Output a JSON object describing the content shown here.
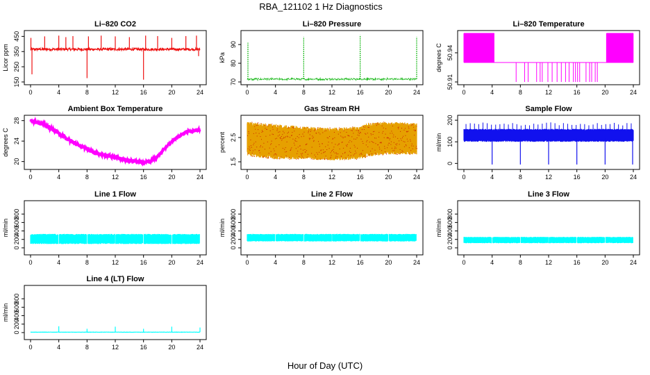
{
  "figure": {
    "title": "RBA_121102  1 Hz Diagnostics",
    "xlabel": "Hour of Day (UTC)"
  },
  "chart_data": [
    {
      "type": "line",
      "title": "Li–820 CO2",
      "ylabel": "Licor ppm",
      "color": "#ee1111",
      "xlim": [
        0,
        24
      ],
      "xticks": [
        0,
        4,
        8,
        12,
        16,
        20,
        24
      ],
      "ylim": [
        150,
        470
      ],
      "yticks": [
        150,
        250,
        350,
        450
      ],
      "series": [
        {
          "name": "CO2",
          "baseline": 365,
          "noise": 8,
          "spikes_up": [
            [
              0.05,
              440
            ],
            [
              2,
              450
            ],
            [
              4,
              455
            ],
            [
              5,
              445
            ],
            [
              6,
              452
            ],
            [
              8.2,
              450
            ],
            [
              10,
              455
            ],
            [
              12,
              450
            ],
            [
              14,
              445
            ],
            [
              16.3,
              455
            ],
            [
              18,
              452
            ],
            [
              20,
              440
            ],
            [
              22,
              452
            ],
            [
              23.5,
              455
            ]
          ],
          "spikes_down": [
            [
              0.2,
              200
            ],
            [
              8,
              175
            ],
            [
              16,
              165
            ],
            [
              23.8,
              320
            ]
          ]
        }
      ]
    },
    {
      "type": "line",
      "title": "Li–820 Pressure",
      "ylabel": "kPa",
      "color": "#22bb22",
      "xlim": [
        0,
        24
      ],
      "xticks": [
        0,
        4,
        8,
        12,
        16,
        20,
        24
      ],
      "ylim": [
        70,
        96
      ],
      "yticks": [
        70,
        80,
        90
      ],
      "series": [
        {
          "name": "Pressure",
          "baseline": 71.5,
          "noise": 0.4,
          "dashed": true,
          "spikes_up": [
            [
              0.1,
              91
            ],
            [
              8,
              94
            ],
            [
              16,
              95
            ],
            [
              24,
              94
            ]
          ]
        }
      ]
    },
    {
      "type": "step",
      "title": "Li–820 Temperature",
      "ylabel": "degrees C",
      "color": "#ff00ff",
      "xlim": [
        0,
        24
      ],
      "xticks": [
        0,
        4,
        8,
        12,
        16,
        20,
        24
      ],
      "ylim": [
        50.91,
        50.96
      ],
      "yticks": [
        50.91,
        50.94
      ],
      "ytick_labels": [
        "50.91",
        "50.94"
      ],
      "series": [
        {
          "name": "Temperature",
          "low": 50.91,
          "mid": 50.93,
          "high": 50.96,
          "dense_ranges": [
            [
              0,
              4.3
            ],
            [
              20.2,
              24
            ]
          ],
          "drops": [
            7.4,
            8.6,
            9.1,
            10.3,
            10.8,
            11.1,
            11.9,
            12.5,
            13.2,
            13.8,
            14.4,
            14.9,
            15.5,
            15.8,
            16.1,
            16.4,
            17.3,
            17.8,
            18.1,
            18.6,
            18.9
          ]
        }
      ]
    },
    {
      "type": "line",
      "title": "Ambient Box Temperature",
      "ylabel": "degrees C",
      "color": "#ff00ff",
      "xlim": [
        0,
        24
      ],
      "xticks": [
        0,
        4,
        8,
        12,
        16,
        20,
        24
      ],
      "ylim": [
        19,
        28.5
      ],
      "yticks": [
        20,
        24,
        28
      ],
      "series": [
        {
          "name": "Ambient",
          "x": [
            0,
            2,
            4,
            6,
            8,
            10,
            12,
            14,
            16,
            17,
            18,
            19,
            20,
            22,
            24
          ],
          "y": [
            28,
            27.2,
            25.5,
            23.8,
            22.4,
            21.4,
            20.8,
            20.2,
            19.8,
            20.0,
            21.0,
            22.5,
            24.0,
            25.8,
            26.2
          ],
          "noise": 0.35
        }
      ]
    },
    {
      "type": "band",
      "title": "Gas Stream RH",
      "ylabel": "percent",
      "color": "#e6a000",
      "xlim": [
        0,
        24
      ],
      "xticks": [
        0,
        4,
        8,
        12,
        16,
        20,
        24
      ],
      "ylim": [
        1.3,
        3.3
      ],
      "yticks": [
        1.5,
        2.5
      ],
      "series": [
        {
          "name": "RH",
          "x": [
            0,
            2,
            4,
            8,
            12,
            16,
            17,
            20,
            24
          ],
          "lo": [
            1.75,
            1.65,
            1.6,
            1.6,
            1.55,
            1.6,
            1.7,
            1.8,
            1.8
          ],
          "hi": [
            3.15,
            3.1,
            3.05,
            2.95,
            2.9,
            2.95,
            3.1,
            3.15,
            3.1
          ]
        }
      ]
    },
    {
      "type": "band",
      "title": "Sample Flow",
      "ylabel": "ml/min",
      "color": "#1111ee",
      "xlim": [
        0,
        24
      ],
      "xticks": [
        0,
        4,
        8,
        12,
        16,
        20,
        24
      ],
      "ylim": [
        -15,
        210
      ],
      "yticks": [
        0,
        100,
        200
      ],
      "series": [
        {
          "name": "Sample",
          "x": [
            0,
            24
          ],
          "lo": [
            100,
            100
          ],
          "hi": [
            160,
            160
          ],
          "spikes_up": 190,
          "drops": [
            4,
            8,
            12,
            16,
            20,
            23.9
          ],
          "drop_value": -5
        }
      ]
    },
    {
      "type": "band",
      "title": "Line 1 Flow",
      "ylabel": "ml/min",
      "color": "#00ffff",
      "xlim": [
        0,
        24
      ],
      "xticks": [
        0,
        4,
        8,
        12,
        16,
        20,
        24
      ],
      "ylim": [
        -100,
        1050
      ],
      "yticks": [
        0,
        200,
        400,
        600,
        800
      ],
      "series": [
        {
          "name": "Line 1",
          "x": [
            0,
            24
          ],
          "lo": [
            90,
            90
          ],
          "hi": [
            330,
            330
          ],
          "gaps": [
            4,
            8,
            12,
            16,
            20,
            24
          ]
        }
      ]
    },
    {
      "type": "band",
      "title": "Line 2 Flow",
      "ylabel": "ml/min",
      "color": "#00ffff",
      "xlim": [
        0,
        24
      ],
      "xticks": [
        0,
        4,
        8,
        12,
        16,
        20,
        24
      ],
      "ylim": [
        -100,
        1050
      ],
      "yticks": [
        0,
        200,
        400,
        600,
        800
      ],
      "series": [
        {
          "name": "Line 2",
          "x": [
            0,
            24
          ],
          "lo": [
            150,
            150
          ],
          "hi": [
            330,
            330
          ],
          "gaps": [
            4,
            8,
            12,
            16,
            20,
            24
          ]
        }
      ]
    },
    {
      "type": "band",
      "title": "Line 3 Flow",
      "ylabel": "ml/min",
      "color": "#00ffff",
      "xlim": [
        0,
        24
      ],
      "xticks": [
        0,
        4,
        8,
        12,
        16,
        20,
        24
      ],
      "ylim": [
        -100,
        1050
      ],
      "yticks": [
        0,
        200,
        400,
        600,
        800
      ],
      "series": [
        {
          "name": "Line 3",
          "x": [
            0,
            24
          ],
          "lo": [
            110,
            110
          ],
          "hi": [
            260,
            260
          ],
          "gaps": [
            4,
            8,
            12,
            16,
            20,
            24
          ]
        }
      ]
    },
    {
      "type": "line",
      "title": "Line 4 (LT) Flow",
      "ylabel": "ml/min",
      "color": "#00ffff",
      "xlim": [
        0,
        24
      ],
      "xticks": [
        0,
        4,
        8,
        12,
        16,
        20,
        24
      ],
      "ylim": [
        -100,
        1050
      ],
      "yticks": [
        0,
        200,
        400,
        600,
        800
      ],
      "series": [
        {
          "name": "Line 4",
          "baseline": 10,
          "noise": 3,
          "spikes_up": [
            [
              4,
              150
            ],
            [
              8,
              90
            ],
            [
              12,
              140
            ],
            [
              16,
              90
            ],
            [
              20,
              140
            ],
            [
              24,
              120
            ]
          ]
        }
      ]
    }
  ]
}
